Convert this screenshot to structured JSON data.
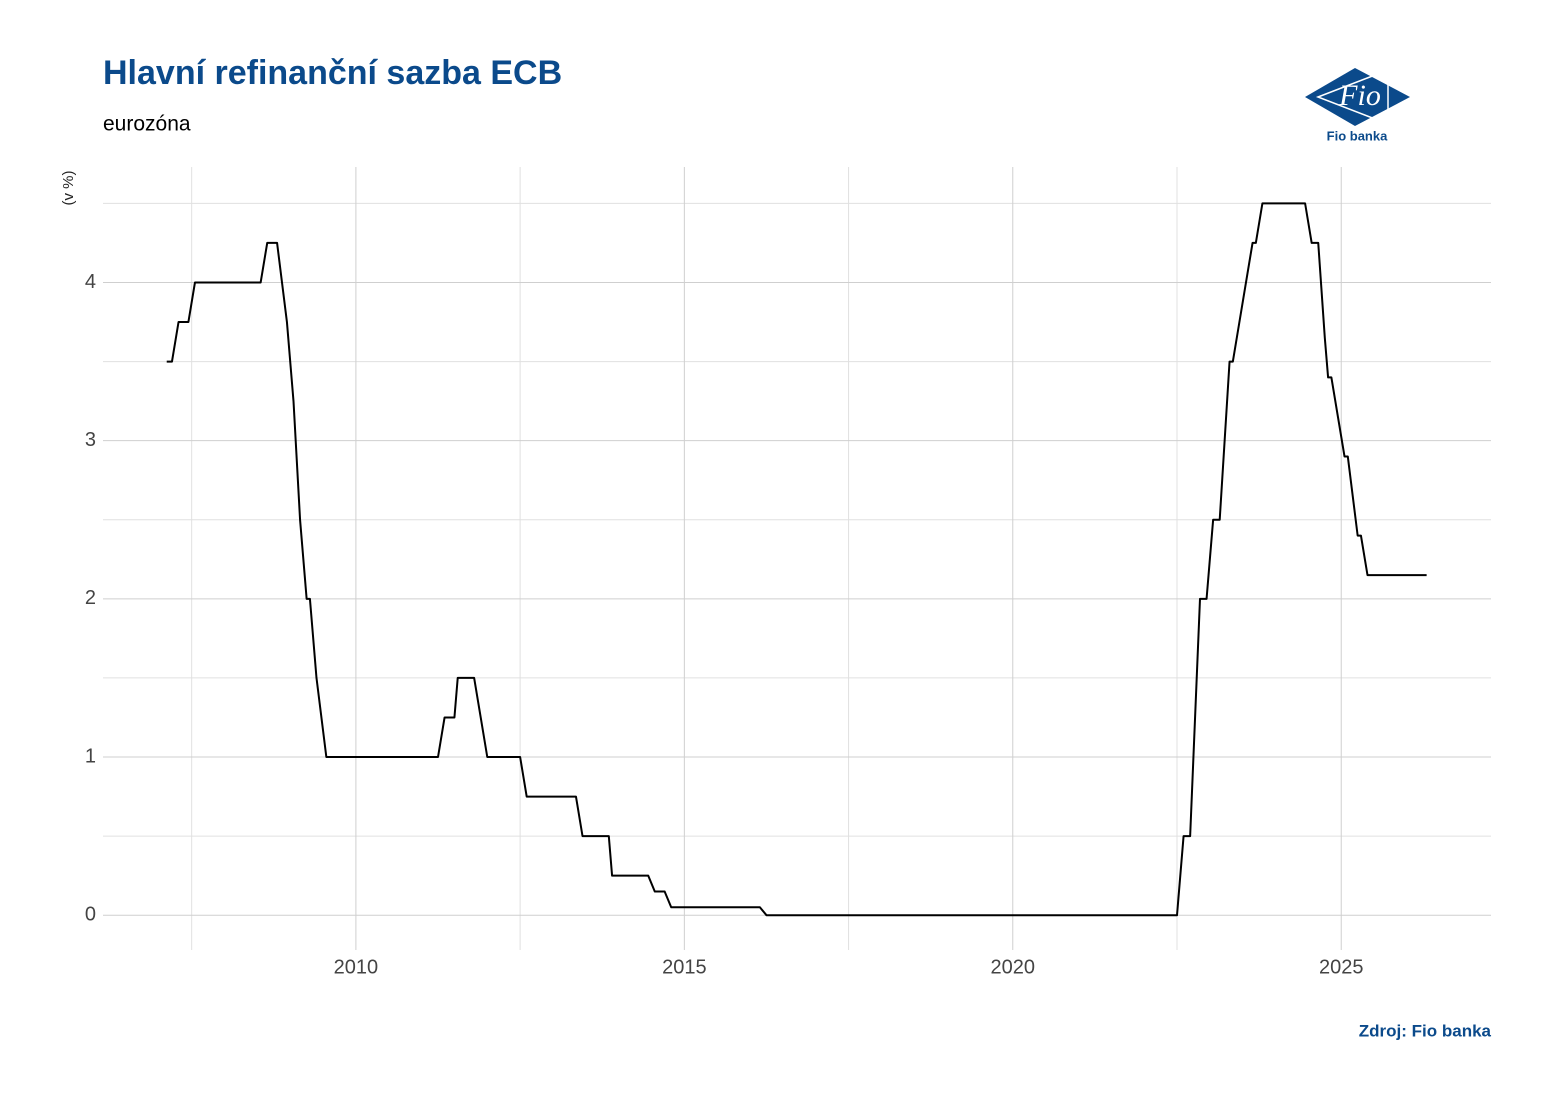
{
  "chart_data": {
    "type": "line",
    "title": "Hlavní refinanční sazba ECB",
    "subtitle": "eurozóna",
    "y_label": "(v %)",
    "source": "Zdroj: Fio banka",
    "logo": {
      "mark": "Fio",
      "name": "Fio banka"
    },
    "x": [
      2007.12,
      2007.2,
      2007.3,
      2007.45,
      2007.55,
      2008.55,
      2008.65,
      2008.8,
      2008.95,
      2009.05,
      2009.15,
      2009.25,
      2009.3,
      2009.4,
      2009.55,
      2011.25,
      2011.35,
      2011.5,
      2011.55,
      2011.8,
      2011.9,
      2012.0,
      2012.5,
      2012.6,
      2013.35,
      2013.45,
      2013.85,
      2013.9,
      2014.45,
      2014.55,
      2014.7,
      2014.8,
      2016.15,
      2016.25,
      2022.5,
      2022.6,
      2022.7,
      2022.85,
      2022.95,
      2023.05,
      2023.15,
      2023.3,
      2023.35,
      2023.45,
      2023.55,
      2023.65,
      2023.7,
      2023.8,
      2024.45,
      2024.55,
      2024.65,
      2024.75,
      2024.8,
      2024.85,
      2024.95,
      2025.05,
      2025.1,
      2025.25,
      2025.3,
      2025.4,
      2026.3
    ],
    "series": [
      {
        "name": "Hlavní refinanční sazba",
        "color": "#000000",
        "values": [
          3.5,
          3.5,
          3.75,
          3.75,
          4.0,
          4.0,
          4.25,
          4.25,
          3.75,
          3.25,
          2.5,
          2.0,
          2.0,
          1.5,
          1.0,
          1.0,
          1.25,
          1.25,
          1.5,
          1.5,
          1.25,
          1.0,
          1.0,
          0.75,
          0.75,
          0.5,
          0.5,
          0.25,
          0.25,
          0.15,
          0.15,
          0.05,
          0.05,
          0.0,
          0.0,
          0.5,
          0.5,
          2.0,
          2.0,
          2.5,
          2.5,
          3.5,
          3.5,
          3.75,
          4.0,
          4.25,
          4.25,
          4.5,
          4.5,
          4.25,
          4.25,
          3.65,
          3.4,
          3.4,
          3.15,
          2.9,
          2.9,
          2.4,
          2.4,
          2.15,
          2.15
        ]
      }
    ],
    "xlim": [
      2006.15,
      2027.28
    ],
    "ylim": [
      -0.22,
      4.73
    ],
    "xticks": [
      2010,
      2015,
      2020,
      2025
    ],
    "yticks": [
      0,
      1,
      2,
      3,
      4
    ],
    "x_minor_ticks": [
      2007.5,
      2012.5,
      2017.5,
      2022.5
    ],
    "y_minor_ticks": [
      0.5,
      1.5,
      2.5,
      3.5,
      4.5
    ],
    "grid": true
  }
}
